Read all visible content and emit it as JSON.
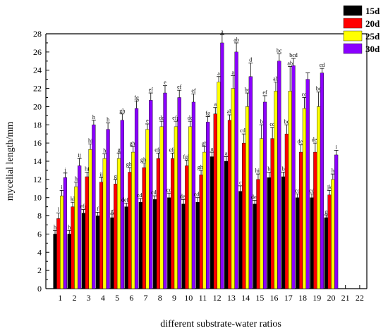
{
  "chart_data": {
    "type": "bar",
    "title": "",
    "xlabel": "different substrate-water ratios",
    "ylabel": "mycelial length/mm",
    "x_ticks": [
      "1",
      "2",
      "3",
      "4",
      "5",
      "6",
      "7",
      "8",
      "9",
      "10",
      "11",
      "12",
      "13",
      "14",
      "15",
      "16",
      "17",
      "18",
      "19",
      "20",
      "21",
      "22"
    ],
    "categories": [
      "1",
      "2",
      "3",
      "4",
      "5",
      "6",
      "7",
      "8",
      "9",
      "10",
      "11",
      "12",
      "13",
      "14",
      "15",
      "16",
      "17",
      "18",
      "19",
      "20"
    ],
    "ylim": [
      0,
      28
    ],
    "y_ticks": [
      0,
      2,
      4,
      6,
      8,
      10,
      12,
      14,
      16,
      18,
      20,
      22,
      24,
      26,
      28
    ],
    "legend_position": "top-right",
    "grid": false,
    "series": [
      {
        "name": "15d",
        "color": "#000000",
        "values": [
          6.0,
          6.0,
          8.3,
          8.0,
          7.8,
          9.0,
          9.5,
          9.8,
          10.0,
          9.3,
          9.5,
          14.5,
          14.0,
          10.7,
          9.3,
          12.2,
          12.3,
          10.0,
          10.0,
          7.8
        ],
        "errors": [
          0.4,
          0.4,
          0.4,
          0.4,
          0.4,
          0.4,
          0.4,
          0.4,
          0.5,
          0.5,
          0.5,
          0.5,
          0.5,
          0.6,
          0.4,
          0.6,
          0.5,
          0.4,
          0.4,
          0.3
        ],
        "labels": [
          "h",
          "h",
          "efg",
          "f",
          "g",
          "defg",
          "cde",
          "cde",
          "cd",
          "def",
          "cde",
          "a",
          "a",
          "c",
          "def",
          "b",
          "b",
          "cd",
          "cd",
          "g"
        ]
      },
      {
        "name": "20d",
        "color": "#ff0000",
        "values": [
          7.7,
          9.0,
          12.3,
          11.7,
          11.5,
          12.8,
          13.3,
          14.3,
          14.3,
          13.5,
          12.5,
          19.2,
          18.5,
          16.0,
          12.0,
          16.5,
          17.0,
          15.0,
          15.0,
          10.3
        ],
        "errors": [
          0.6,
          0.5,
          0.5,
          0.5,
          0.5,
          0.5,
          0.5,
          0.6,
          0.6,
          0.6,
          0.5,
          0.7,
          0.6,
          1.0,
          0.6,
          1.2,
          1.0,
          0.8,
          1.0,
          0.5
        ],
        "labels": [
          "l",
          "kl",
          "hi",
          "ij",
          "g",
          "ghi",
          "ghi",
          "efg",
          "efg",
          "fgh",
          "ghi",
          "a",
          "ab",
          "cde",
          "hij",
          "cd",
          "bc",
          "def",
          "def",
          "jk"
        ]
      },
      {
        "name": "25d",
        "color": "#ffff00",
        "values": [
          10.2,
          11.2,
          15.3,
          14.3,
          14.3,
          15.0,
          17.5,
          17.8,
          17.8,
          17.8,
          15.0,
          22.7,
          22.0,
          20.0,
          16.5,
          21.7,
          21.7,
          19.8,
          20.0,
          12.0
        ],
        "errors": [
          0.6,
          0.5,
          0.6,
          0.5,
          0.6,
          0.6,
          0.6,
          0.6,
          0.6,
          0.6,
          0.6,
          0.6,
          1.4,
          1.5,
          1.5,
          1.0,
          2.7,
          1.2,
          1.6,
          0.6
        ],
        "labels": [
          "i",
          "h",
          "hi",
          "h",
          "g",
          "ghi",
          "e",
          "de",
          "efg",
          "de",
          "gh",
          "a",
          "a",
          "bc",
          "b",
          "ab",
          "ab",
          "cd",
          "bc",
          "h"
        ]
      },
      {
        "name": "30d",
        "color": "#8a00ff",
        "values": [
          12.2,
          13.5,
          18.0,
          17.5,
          18.5,
          19.8,
          20.7,
          21.5,
          21.0,
          20.5,
          18.3,
          27.0,
          26.0,
          23.3,
          20.5,
          25.0,
          24.5,
          23.0,
          23.7,
          14.7
        ],
        "errors": [
          0.5,
          0.8,
          0.5,
          0.7,
          0.7,
          0.8,
          0.8,
          0.8,
          0.8,
          0.9,
          0.6,
          0.9,
          1.0,
          1.5,
          0.7,
          0.8,
          0.8,
          0.7,
          0.5,
          0.5
        ],
        "labels": [
          "j",
          "ij",
          "h",
          "h",
          "gh",
          "fg",
          "ef",
          "e",
          "ef",
          "ef",
          "fg",
          "a",
          "ab",
          "d",
          "ef",
          "bc",
          "bcd",
          "",
          "cd",
          "i"
        ]
      }
    ]
  }
}
